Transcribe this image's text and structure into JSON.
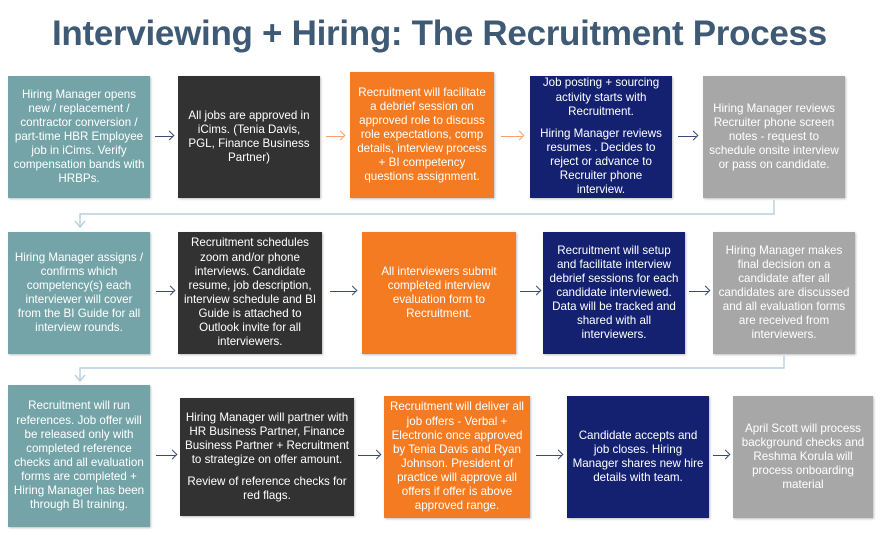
{
  "title": "Interviewing + Hiring: The Recruitment Process",
  "colors": {
    "teal": "#74a4a7",
    "dark": "#323232",
    "orange": "#f47b22",
    "navy": "#132170",
    "grey": "#a7a7a7",
    "title": "#3f5a74"
  },
  "rows": [
    {
      "steps": [
        {
          "text": "Hiring Manager opens new / replacement / contractor conversion / part-time HBR Employee job in iCims. Verify compensation bands with HRBPs."
        },
        {
          "text": "All jobs are approved in iCims.  (Tenia Davis, PGL, Finance Business Partner)"
        },
        {
          "text": "Recruitment will facilitate a debrief session on approved role to discuss role expectations, comp details, interview process + BI competency questions assignment."
        },
        {
          "text": "Job posting + sourcing activity starts with Recruitment.",
          "text2": "Hiring Manager reviews resumes . Decides to reject or advance to Recruiter phone interview."
        },
        {
          "text": "Hiring Manager reviews Recruiter phone screen notes - request to schedule onsite interview or pass on candidate."
        }
      ]
    },
    {
      "steps": [
        {
          "text": "Hiring Manager assigns / confirms which competency(s) each interviewer will cover from the BI Guide for all interview rounds."
        },
        {
          "text": "Recruitment schedules zoom and/or phone interviews. Candidate resume, job description, interview schedule and BI Guide is attached to Outlook invite for all interviewers."
        },
        {
          "text": "All interviewers submit completed interview evaluation form to Recruitment."
        },
        {
          "text": "Recruitment will setup and facilitate interview debrief sessions for each candidate interviewed.  Data will be tracked and shared with all interviewers."
        },
        {
          "text": "Hiring Manager makes final decision on a candidate after all candidates are discussed and all evaluation forms are received from interviewers."
        }
      ]
    },
    {
      "steps": [
        {
          "text": "Recruitment will  run references. Job offer will be released only with completed reference checks and all evaluation forms are completed + Hiring Manager has been through BI training."
        },
        {
          "text": "Hiring Manager will partner with HR Business Partner, Finance Business Partner + Recruitment to strategize on offer amount.",
          "text2": "Review of reference checks for red flags."
        },
        {
          "text": "Recruitment will deliver all job offers - Verbal + Electronic  once approved by Tenia Davis and Ryan  Johnson. President of practice will approve all offers if offer is above approved range."
        },
        {
          "text": "Candidate accepts and job closes. Hiring Manager shares new hire details with team."
        },
        {
          "text": "April Scott will process background checks and Reshma Korula will process onboarding material"
        }
      ]
    }
  ]
}
